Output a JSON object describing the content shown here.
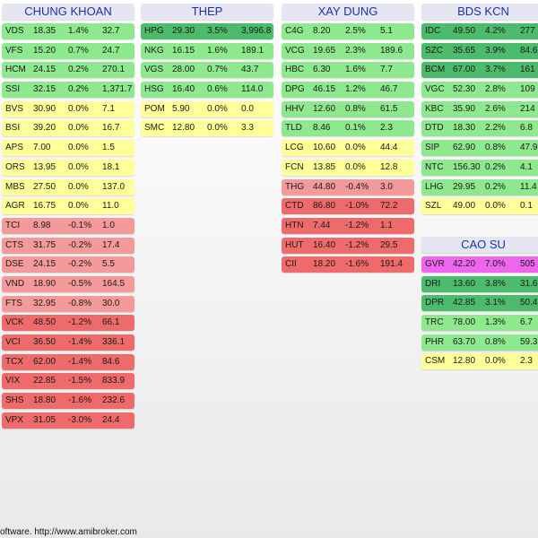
{
  "colors": {
    "dark_green": "#4cbb6c",
    "green": "#8ee88e",
    "yellow": "#ffff99",
    "light_red": "#f59a9a",
    "red": "#ef6a6a",
    "magenta": "#ee66ee"
  },
  "groups": [
    {
      "title": "CHUNG KHOAN",
      "rows": [
        {
          "ticker": "VDS",
          "price": "18.35",
          "pct": "1.4%",
          "vol": "32.7",
          "color": "#8ee88e"
        },
        {
          "ticker": "VFS",
          "price": "15.20",
          "pct": "0.7%",
          "vol": "24.7",
          "color": "#8ee88e"
        },
        {
          "ticker": "HCM",
          "price": "24.15",
          "pct": "0.2%",
          "vol": "270.1",
          "color": "#8ee88e"
        },
        {
          "ticker": "SSI",
          "price": "32.15",
          "pct": "0.2%",
          "vol": "1,371.7",
          "color": "#8ee88e"
        },
        {
          "ticker": "BVS",
          "price": "30.90",
          "pct": "0.0%",
          "vol": "7.1",
          "color": "#ffff99"
        },
        {
          "ticker": "BSI",
          "price": "39.20",
          "pct": "0.0%",
          "vol": "16.7",
          "color": "#ffff99"
        },
        {
          "ticker": "APS",
          "price": "7.00",
          "pct": "0.0%",
          "vol": "1.5",
          "color": "#ffff99"
        },
        {
          "ticker": "ORS",
          "price": "13.95",
          "pct": "0.0%",
          "vol": "18.1",
          "color": "#ffff99"
        },
        {
          "ticker": "MBS",
          "price": "27.50",
          "pct": "0.0%",
          "vol": "137.0",
          "color": "#ffff99"
        },
        {
          "ticker": "AGR",
          "price": "16.75",
          "pct": "0.0%",
          "vol": "11.0",
          "color": "#ffff99"
        },
        {
          "ticker": "TCI",
          "price": "8.98",
          "pct": "-0.1%",
          "vol": "1.0",
          "color": "#f59a9a"
        },
        {
          "ticker": "CTS",
          "price": "31.75",
          "pct": "-0.2%",
          "vol": "17.4",
          "color": "#f59a9a"
        },
        {
          "ticker": "DSE",
          "price": "24.15",
          "pct": "-0.2%",
          "vol": "5.5",
          "color": "#f59a9a"
        },
        {
          "ticker": "VND",
          "price": "18.90",
          "pct": "-0.5%",
          "vol": "164.5",
          "color": "#f59a9a"
        },
        {
          "ticker": "FTS",
          "price": "32.95",
          "pct": "-0.8%",
          "vol": "30.0",
          "color": "#f59a9a"
        },
        {
          "ticker": "VCK",
          "price": "48.50",
          "pct": "-1.2%",
          "vol": "66.1",
          "color": "#ef6a6a"
        },
        {
          "ticker": "VCI",
          "price": "36.50",
          "pct": "-1.4%",
          "vol": "336.1",
          "color": "#ef6a6a"
        },
        {
          "ticker": "TCX",
          "price": "62.00",
          "pct": "-1.4%",
          "vol": "84.6",
          "color": "#ef6a6a"
        },
        {
          "ticker": "VIX",
          "price": "22.85",
          "pct": "-1.5%",
          "vol": "833.9",
          "color": "#ef6a6a"
        },
        {
          "ticker": "SHS",
          "price": "18.80",
          "pct": "-1.6%",
          "vol": "232.6",
          "color": "#ef6a6a"
        },
        {
          "ticker": "VPX",
          "price": "31.05",
          "pct": "-3.0%",
          "vol": "24.4",
          "color": "#ef6a6a"
        }
      ]
    },
    {
      "title": "THEP",
      "rows": [
        {
          "ticker": "HPG",
          "price": "29.30",
          "pct": "3.5%",
          "vol": "3,996.8",
          "color": "#4cbb6c"
        },
        {
          "ticker": "NKG",
          "price": "16.15",
          "pct": "1.6%",
          "vol": "189.1",
          "color": "#8ee88e"
        },
        {
          "ticker": "VGS",
          "price": "28.00",
          "pct": "0.7%",
          "vol": "43.7",
          "color": "#8ee88e"
        },
        {
          "ticker": "HSG",
          "price": "16.40",
          "pct": "0.6%",
          "vol": "114.0",
          "color": "#8ee88e"
        },
        {
          "ticker": "POM",
          "price": "5.90",
          "pct": "0.0%",
          "vol": "0.0",
          "color": "#ffff99"
        },
        {
          "ticker": "SMC",
          "price": "12.80",
          "pct": "0.0%",
          "vol": "3.3",
          "color": "#ffff99"
        }
      ]
    },
    {
      "title": "XAY DUNG",
      "rows": [
        {
          "ticker": "C4G",
          "price": "8.20",
          "pct": "2.5%",
          "vol": "5.1",
          "color": "#8ee88e"
        },
        {
          "ticker": "VCG",
          "price": "19.65",
          "pct": "2.3%",
          "vol": "189.6",
          "color": "#8ee88e"
        },
        {
          "ticker": "HBC",
          "price": "6.30",
          "pct": "1.6%",
          "vol": "7.7",
          "color": "#8ee88e"
        },
        {
          "ticker": "DPG",
          "price": "46.15",
          "pct": "1.2%",
          "vol": "46.7",
          "color": "#8ee88e"
        },
        {
          "ticker": "HHV",
          "price": "12.60",
          "pct": "0.8%",
          "vol": "61.5",
          "color": "#8ee88e"
        },
        {
          "ticker": "TLD",
          "price": "8.46",
          "pct": "0.1%",
          "vol": "2.3",
          "color": "#8ee88e"
        },
        {
          "ticker": "LCG",
          "price": "10.60",
          "pct": "0.0%",
          "vol": "44.4",
          "color": "#ffff99"
        },
        {
          "ticker": "FCN",
          "price": "13.85",
          "pct": "0.0%",
          "vol": "12.8",
          "color": "#ffff99"
        },
        {
          "ticker": "THG",
          "price": "44.80",
          "pct": "-0.4%",
          "vol": "3.0",
          "color": "#f59a9a"
        },
        {
          "ticker": "CTD",
          "price": "86.80",
          "pct": "-1.0%",
          "vol": "72.2",
          "color": "#ef6a6a"
        },
        {
          "ticker": "HTN",
          "price": "7.44",
          "pct": "-1.2%",
          "vol": "1.1",
          "color": "#ef6a6a"
        },
        {
          "ticker": "HUT",
          "price": "16.40",
          "pct": "-1.2%",
          "vol": "29.5",
          "color": "#ef6a6a"
        },
        {
          "ticker": "CII",
          "price": "18.20",
          "pct": "-1.6%",
          "vol": "191.4",
          "color": "#ef6a6a"
        }
      ]
    },
    {
      "title": "BDS KCN",
      "rows": [
        {
          "ticker": "IDC",
          "price": "49.50",
          "pct": "4.2%",
          "vol": "277",
          "color": "#4cbb6c"
        },
        {
          "ticker": "SZC",
          "price": "35.65",
          "pct": "3.9%",
          "vol": "84.6",
          "color": "#4cbb6c"
        },
        {
          "ticker": "BCM",
          "price": "67.00",
          "pct": "3.7%",
          "vol": "161",
          "color": "#4cbb6c"
        },
        {
          "ticker": "VGC",
          "price": "52.30",
          "pct": "2.8%",
          "vol": "109",
          "color": "#8ee88e"
        },
        {
          "ticker": "KBC",
          "price": "35.90",
          "pct": "2.6%",
          "vol": "214",
          "color": "#8ee88e"
        },
        {
          "ticker": "DTD",
          "price": "18.30",
          "pct": "2.2%",
          "vol": "6.8",
          "color": "#8ee88e"
        },
        {
          "ticker": "SIP",
          "price": "62.90",
          "pct": "0.8%",
          "vol": "47.9",
          "color": "#8ee88e"
        },
        {
          "ticker": "NTC",
          "price": "156.30",
          "pct": "0.2%",
          "vol": "4.1",
          "color": "#8ee88e"
        },
        {
          "ticker": "LHG",
          "price": "29.95",
          "pct": "0.2%",
          "vol": "11.4",
          "color": "#8ee88e"
        },
        {
          "ticker": "SZL",
          "price": "49.00",
          "pct": "0.0%",
          "vol": "0.1",
          "color": "#ffff99"
        }
      ]
    },
    {
      "title": "CAO SU",
      "rows": [
        {
          "ticker": "GVR",
          "price": "42.20",
          "pct": "7.0%",
          "vol": "505",
          "color": "#ee66ee"
        },
        {
          "ticker": "DRI",
          "price": "13.60",
          "pct": "3.8%",
          "vol": "31.6",
          "color": "#4cbb6c"
        },
        {
          "ticker": "DPR",
          "price": "42.85",
          "pct": "3.1%",
          "vol": "50.4",
          "color": "#4cbb6c"
        },
        {
          "ticker": "TRC",
          "price": "78.00",
          "pct": "1.3%",
          "vol": "6.7",
          "color": "#8ee88e"
        },
        {
          "ticker": "PHR",
          "price": "63.70",
          "pct": "0.8%",
          "vol": "59.3",
          "color": "#8ee88e"
        },
        {
          "ticker": "CSM",
          "price": "12.80",
          "pct": "0.0%",
          "vol": "2.3",
          "color": "#ffff99"
        }
      ]
    }
  ],
  "footer": "oftware. http://www.amibroker.com"
}
